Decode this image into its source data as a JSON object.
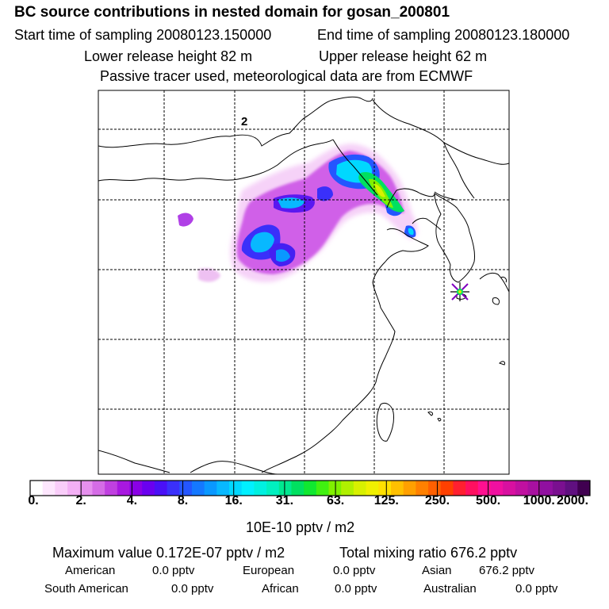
{
  "header": {
    "title": "BC  source contributions in nested domain for gosan_200801",
    "start_label": "Start time of sampling 20080123.150000",
    "end_label": "End time of sampling 20080123.180000",
    "lower_label": "Lower release height   82 m",
    "upper_label": "Upper release height   62 m",
    "tracer_note": "Passive tracer used, meteorological data are from ECMWF"
  },
  "map": {
    "grid_label": "2",
    "receptor_icon": "star-marker-icon"
  },
  "colorbar": {
    "tick_labels": [
      "0.",
      "2.",
      "4.",
      "8.",
      "16.",
      "31.",
      "63.",
      "125.",
      "250.",
      "500.",
      "1000.",
      "2000."
    ],
    "colors": [
      "#ffffff",
      "#fde6fd",
      "#f9cdf9",
      "#f3b0f5",
      "#e690ee",
      "#d56ce6",
      "#c040e0",
      "#a818e0",
      "#8a00e6",
      "#6a00f0",
      "#4a10f6",
      "#3a30fa",
      "#2456ff",
      "#1478ff",
      "#0a98ff",
      "#08b8ff",
      "#00d8ff",
      "#00f0ff",
      "#00f0e0",
      "#00f0c0",
      "#00e890",
      "#00e060",
      "#10e830",
      "#40f010",
      "#80f000",
      "#b0f000",
      "#d8f000",
      "#f0f000",
      "#ffe000",
      "#ffc000",
      "#ffa000",
      "#ff8000",
      "#ff6000",
      "#ff4000",
      "#ff2030",
      "#ff1060",
      "#ff1090",
      "#f010a0",
      "#d810a0",
      "#c010a0",
      "#a810a0",
      "#9010a0",
      "#7a1090",
      "#601080",
      "#400050"
    ],
    "unit_label": "10E-10 pptv / m2"
  },
  "stats": {
    "max_label": "Maximum value  0.172E-07 pptv / m2",
    "total_label": "Total mixing ratio      676.2 pptv",
    "american_label": "American",
    "american_value": "0.0 pptv",
    "european_label": "European",
    "european_value": "0.0 pptv",
    "asian_label": "Asian",
    "asian_value": "676.2 pptv",
    "south_american_label": "South American",
    "south_american_value": "0.0 pptv",
    "african_label": "African",
    "african_value": "0.0 pptv",
    "australian_label": "Australian",
    "australian_value": "0.0 pptv"
  }
}
